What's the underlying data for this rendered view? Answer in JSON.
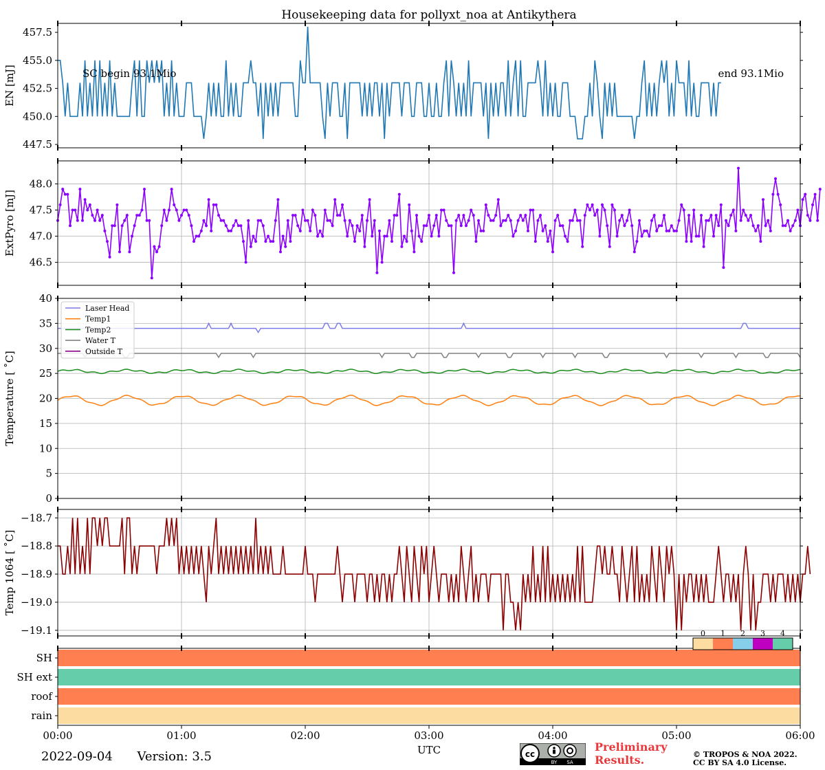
{
  "figure": {
    "date": "2022-09-04",
    "version": "Version: 3.5",
    "preliminary_line1": "Preliminary",
    "preliminary_line2": "Results.",
    "copyright_line1": "© TROPOS & NOA 2022.",
    "copyright_line2": "CC BY SA 4.0 License.",
    "cc_badge": [
      "BY",
      "SA"
    ]
  },
  "chart_data": [
    {
      "id": "en",
      "type": "line",
      "title": "Housekeeping data for pollyxt_noa at Antikythera",
      "ylabel": "EN [mJ]",
      "ylim": [
        447.2,
        458.3
      ],
      "yticks": [
        447.5,
        450.0,
        452.5,
        455.0,
        457.5
      ],
      "ytick_labels": [
        "447.5",
        "450.0",
        "452.5",
        "455.0",
        "457.5"
      ],
      "grid": false,
      "color": "#1f77b4",
      "annotations": [
        "SC begin 93.1Mio",
        "end 93.1Mio"
      ],
      "x_start_h": 0.0,
      "x_step_h": 0.02,
      "values": [
        455,
        455,
        453,
        450,
        453,
        450,
        450,
        450,
        450,
        453,
        450,
        455,
        450,
        453,
        450,
        455,
        450,
        455,
        450,
        453,
        450,
        455,
        450,
        453,
        450,
        450,
        450,
        450,
        450,
        450,
        453,
        455,
        450,
        455,
        450,
        450,
        455,
        453,
        455,
        453,
        455,
        453,
        455,
        450,
        453,
        450,
        455,
        450,
        453,
        450,
        450,
        450,
        453,
        453,
        453,
        450,
        450,
        450,
        450,
        448,
        450,
        453,
        450,
        453,
        450,
        453,
        450,
        450,
        455,
        450,
        453,
        450,
        453,
        450,
        450,
        453,
        453,
        453,
        455,
        453,
        453,
        450,
        453,
        448,
        453,
        450,
        453,
        450,
        453,
        450,
        453,
        453,
        453,
        453,
        453,
        453,
        450,
        450,
        455,
        453,
        453,
        458,
        453,
        453,
        453,
        453,
        453,
        450,
        448,
        453,
        450,
        453,
        453,
        453,
        450,
        450,
        453,
        448,
        453,
        453,
        453,
        453,
        453,
        450,
        453,
        450,
        453,
        450,
        453,
        453,
        450,
        453,
        448,
        453,
        450,
        453,
        453,
        453,
        453,
        450,
        453,
        453,
        453,
        450,
        450,
        453,
        453,
        453,
        450,
        450,
        453,
        450,
        450,
        453,
        450,
        450,
        453,
        455,
        450,
        455,
        453,
        450,
        453,
        450,
        453,
        450,
        455,
        450,
        453,
        453,
        453,
        453,
        450,
        453,
        448,
        453,
        450,
        453,
        450,
        453,
        453,
        450,
        455,
        450,
        453,
        455,
        450,
        455,
        450,
        450,
        453,
        453,
        453,
        453,
        455,
        453,
        450,
        455,
        450,
        453,
        450,
        453,
        450,
        450,
        453,
        453,
        453,
        450,
        450,
        450,
        448,
        448,
        448,
        450,
        450,
        453,
        450,
        455,
        453,
        450,
        448,
        453,
        450,
        453,
        450,
        453,
        450,
        450,
        450,
        450,
        450,
        450,
        450,
        448,
        450,
        450,
        453,
        455,
        450,
        453,
        450,
        453,
        450,
        453,
        455,
        453,
        455,
        450,
        453,
        450,
        455,
        453,
        453,
        453,
        450,
        455,
        450,
        453,
        450,
        450,
        453,
        453,
        453,
        453,
        450,
        453,
        450,
        453,
        453
      ]
    },
    {
      "id": "extpyro",
      "type": "line",
      "ylabel": "ExtPyro [mJ]",
      "ylim": [
        46.06,
        48.44
      ],
      "yticks": [
        46.5,
        47.0,
        47.5,
        48.0
      ],
      "ytick_labels": [
        "46.5",
        "47.0",
        "47.5",
        "48.0"
      ],
      "grid": true,
      "color": "#8b00ff",
      "markers": true,
      "x_start_h": 0.0,
      "x_step_h": 0.02,
      "values": [
        47.3,
        47.6,
        47.9,
        47.8,
        47.8,
        47.2,
        47.5,
        47.5,
        47.3,
        47.9,
        47.3,
        47.7,
        47.5,
        47.6,
        47.4,
        47.3,
        47.5,
        47.3,
        47.4,
        47.1,
        46.9,
        46.6,
        47.2,
        47.2,
        47.6,
        46.7,
        47.2,
        47.3,
        47.4,
        46.7,
        47.0,
        47.2,
        47.4,
        47.4,
        47.5,
        47.9,
        47.3,
        47.3,
        46.2,
        46.8,
        46.7,
        46.8,
        47.2,
        47.5,
        47.3,
        47.5,
        47.9,
        47.6,
        47.5,
        47.3,
        47.4,
        47.5,
        47.5,
        47.4,
        47.2,
        46.9,
        47.0,
        47.0,
        47.1,
        47.3,
        47.2,
        47.7,
        47.1,
        47.6,
        47.6,
        47.4,
        47.3,
        47.3,
        47.2,
        47.1,
        47.1,
        47.2,
        47.3,
        47.2,
        47.2,
        46.9,
        46.5,
        47.3,
        46.8,
        47.0,
        46.9,
        47.3,
        47.3,
        47.2,
        46.9,
        47.0,
        46.9,
        46.9,
        47.3,
        47.7,
        46.7,
        47.0,
        46.8,
        47.3,
        46.9,
        47.4,
        47.4,
        47.2,
        47.1,
        47.5,
        47.3,
        47.3,
        47.1,
        47.5,
        47.4,
        47.0,
        47.1,
        47.0,
        47.5,
        47.3,
        47.3,
        47.2,
        47.7,
        47.4,
        47.4,
        47.6,
        47.3,
        47.0,
        47.3,
        47.2,
        46.9,
        47.2,
        47.1,
        47.4,
        46.8,
        47.3,
        47.7,
        47.0,
        47.3,
        46.3,
        47.1,
        46.5,
        47.0,
        47.0,
        47.3,
        46.9,
        47.4,
        47.4,
        47.8,
        46.8,
        47.0,
        46.9,
        47.6,
        47.1,
        46.7,
        47.4,
        47.0,
        46.9,
        47.2,
        47.2,
        47.4,
        47.0,
        47.2,
        47.4,
        47.0,
        47.5,
        47.5,
        47.3,
        47.2,
        47.2,
        46.3,
        47.3,
        47.4,
        47.2,
        47.4,
        47.2,
        47.3,
        47.5,
        47.4,
        46.9,
        47.3,
        47.1,
        47.1,
        47.6,
        47.4,
        47.3,
        47.3,
        47.4,
        47.7,
        47.2,
        47.3,
        47.3,
        47.4,
        47.3,
        47.0,
        47.1,
        47.3,
        47.4,
        47.3,
        47.4,
        47.1,
        47.5,
        47.5,
        46.9,
        47.3,
        47.4,
        47.1,
        47.2,
        46.9,
        47.1,
        46.7,
        47.3,
        47.4,
        47.2,
        47.2,
        47.0,
        46.9,
        47.3,
        47.3,
        47.5,
        47.3,
        47.3,
        46.8,
        47.4,
        47.6,
        47.5,
        47.6,
        47.4,
        47.5,
        47.0,
        47.6,
        47.5,
        47.2,
        46.8,
        47.6,
        47.5,
        47.0,
        47.3,
        47.4,
        47.2,
        47.3,
        47.5,
        47.2,
        46.7,
        46.9,
        47.3,
        47.0,
        47.1,
        47.1,
        47.0,
        47.3,
        47.4,
        47.1,
        47.2,
        47.2,
        47.4,
        47.1,
        47.1,
        47.2,
        47.1,
        47.1,
        47.3,
        47.6,
        47.5,
        46.9,
        47.4,
        46.9,
        47.5,
        47.0,
        47.0,
        47.4,
        46.8,
        47.3,
        47.3,
        47.4,
        47.0,
        47.4,
        47.2,
        47.6,
        46.4,
        47.3,
        47.2,
        47.4,
        47.5,
        47.1,
        48.3,
        47.3,
        47.5,
        47.4,
        47.3,
        47.4,
        47.2,
        47.1,
        47.2,
        46.9,
        47.7,
        47.2,
        47.3,
        47.1,
        47.8,
        48.1,
        47.8,
        47.6,
        47.2,
        47.2,
        47.3,
        47.1,
        47.2,
        47.3,
        47.5,
        47.2,
        47.7,
        47.8,
        47.4,
        47.3,
        47.6,
        47.8,
        47.3,
        47.9
      ]
    },
    {
      "id": "temperature",
      "type": "line",
      "ylabel": "Temperature [$^\\circ C$]",
      "ylim": [
        0,
        40
      ],
      "yticks": [
        0,
        5,
        10,
        15,
        20,
        25,
        30,
        35,
        40
      ],
      "ytick_labels": [
        "0",
        "5",
        "10",
        "15",
        "20",
        "25",
        "30",
        "35",
        "40"
      ],
      "grid": true,
      "legend_position": "upper left",
      "series": [
        {
          "name": "Laser Head",
          "color": "#7b7bea",
          "base": 34.0,
          "spikes": [
            [
              1.22,
              35.0
            ],
            [
              1.4,
              35.0
            ],
            [
              1.62,
              33.2
            ],
            [
              2.17,
              35.0
            ],
            [
              2.27,
              35.0
            ],
            [
              3.28,
              35.0
            ],
            [
              5.55,
              35.0
            ]
          ]
        },
        {
          "name": "Temp1",
          "color": "#ff7f0e",
          "base": 19.6,
          "amplitude": 0.9,
          "period_h": 0.45
        },
        {
          "name": "Temp2",
          "color": "#1a8c1a",
          "base": 25.4,
          "amplitude": 0.3,
          "period_h": 0.45
        },
        {
          "name": "Water T",
          "color": "#808080",
          "base": 29.0,
          "dips": [
            0.22,
            0.55,
            1.3,
            1.58,
            2.62,
            2.87,
            3.13,
            3.4,
            3.65,
            3.92,
            4.18,
            4.43,
            4.92,
            5.2,
            5.48,
            5.73,
            6.0
          ],
          "dip_value": 28.2
        },
        {
          "name": "Outside T",
          "color": "#8b008b",
          "values": []
        }
      ]
    },
    {
      "id": "temp1064",
      "type": "line",
      "ylabel": "Temp 1064 [$^\\circ C$]",
      "ylim": [
        -19.12,
        -18.67
      ],
      "yticks": [
        -19.1,
        -19.0,
        -18.9,
        -18.8,
        -18.7
      ],
      "ytick_labels": [
        "−19.1",
        "−19.0",
        "−18.9",
        "−18.8",
        "−18.7"
      ],
      "grid": true,
      "color": "#8b0000",
      "x_start_h": 0.0,
      "x_step_h": 0.02,
      "values": [
        -18.8,
        -18.8,
        -18.9,
        -18.9,
        -18.8,
        -18.9,
        -18.7,
        -18.9,
        -18.7,
        -18.9,
        -18.8,
        -18.9,
        -18.7,
        -18.9,
        -18.7,
        -18.7,
        -18.8,
        -18.7,
        -18.8,
        -18.7,
        -18.7,
        -18.8,
        -18.8,
        -18.8,
        -18.8,
        -18.8,
        -18.7,
        -18.9,
        -18.7,
        -18.7,
        -18.9,
        -18.8,
        -18.9,
        -18.8,
        -18.8,
        -18.8,
        -18.8,
        -18.8,
        -18.8,
        -18.8,
        -18.9,
        -18.8,
        -18.8,
        -18.8,
        -18.7,
        -18.8,
        -18.7,
        -18.8,
        -18.7,
        -18.9,
        -18.8,
        -18.9,
        -18.8,
        -18.9,
        -18.8,
        -18.9,
        -18.8,
        -18.9,
        -18.8,
        -18.9,
        -19.0,
        -18.8,
        -18.9,
        -18.8,
        -18.7,
        -18.9,
        -18.8,
        -18.9,
        -18.8,
        -18.9,
        -18.8,
        -18.9,
        -18.8,
        -18.9,
        -18.8,
        -18.9,
        -18.8,
        -18.9,
        -18.8,
        -18.9,
        -18.7,
        -18.9,
        -18.8,
        -18.9,
        -18.8,
        -18.9,
        -18.8,
        -18.9,
        -18.9,
        -18.9,
        -18.9,
        -18.8,
        -18.9,
        -18.9,
        -18.9,
        -18.9,
        -18.9,
        -18.9,
        -18.9,
        -18.9,
        -18.8,
        -18.9,
        -18.9,
        -18.9,
        -19.0,
        -18.9,
        -18.9,
        -18.9,
        -18.9,
        -18.9,
        -18.9,
        -18.9,
        -18.9,
        -18.8,
        -18.9,
        -19.0,
        -18.9,
        -18.9,
        -18.9,
        -18.9,
        -19.0,
        -18.9,
        -18.9,
        -18.9,
        -18.9,
        -19.0,
        -18.9,
        -18.9,
        -19.0,
        -18.9,
        -19.0,
        -18.9,
        -18.9,
        -19.0,
        -18.9,
        -19.0,
        -18.9,
        -18.9,
        -18.8,
        -18.9,
        -19.0,
        -18.8,
        -18.9,
        -19.0,
        -18.8,
        -18.9,
        -19.0,
        -18.8,
        -18.9,
        -18.8,
        -19.0,
        -18.9,
        -18.8,
        -18.9,
        -19.0,
        -18.9,
        -18.9,
        -18.9,
        -19.0,
        -18.9,
        -19.0,
        -18.9,
        -19.0,
        -18.8,
        -18.9,
        -19.0,
        -18.9,
        -18.8,
        -19.0,
        -18.9,
        -19.0,
        -18.9,
        -18.9,
        -18.9,
        -19.0,
        -18.9,
        -18.9,
        -18.9,
        -18.9,
        -18.9,
        -19.1,
        -18.9,
        -18.9,
        -19.0,
        -19.0,
        -19.1,
        -19.0,
        -19.1,
        -18.9,
        -19.0,
        -18.9,
        -19.0,
        -18.8,
        -19.0,
        -18.9,
        -19.0,
        -18.8,
        -19.0,
        -18.8,
        -19.0,
        -18.9,
        -19.0,
        -18.9,
        -19.0,
        -18.9,
        -19.0,
        -18.9,
        -19.0,
        -18.9,
        -19.0,
        -18.8,
        -19.0,
        -18.8,
        -19.0,
        -19.0,
        -19.0,
        -19.0,
        -18.9,
        -18.8,
        -18.8,
        -18.9,
        -18.8,
        -18.9,
        -18.9,
        -18.8,
        -18.9,
        -18.9,
        -19.0,
        -18.8,
        -18.9,
        -19.0,
        -18.9,
        -18.8,
        -19.0,
        -18.8,
        -19.0,
        -18.9,
        -19.0,
        -18.9,
        -19.0,
        -18.8,
        -18.9,
        -19.0,
        -18.8,
        -18.9,
        -19.0,
        -18.8,
        -18.9,
        -18.8,
        -18.9,
        -19.1,
        -18.9,
        -19.1,
        -18.9,
        -19.0,
        -18.9,
        -18.9,
        -19.0,
        -18.9,
        -19.0,
        -18.9,
        -19.0,
        -18.9,
        -19.0,
        -19.0,
        -19.0,
        -18.9,
        -18.8,
        -18.9,
        -19.0,
        -18.9,
        -18.9,
        -19.0,
        -18.9,
        -19.0,
        -18.9,
        -19.1,
        -18.9,
        -18.8,
        -18.9,
        -19.1,
        -18.9,
        -19.1,
        -19.0,
        -19.0,
        -18.9,
        -18.9,
        -18.9,
        -19.0,
        -18.9,
        -19.0,
        -18.9,
        -18.9,
        -18.9,
        -19.0,
        -18.9,
        -19.0,
        -18.9,
        -19.0,
        -18.9,
        -19.0,
        -18.9,
        -18.9,
        -18.8,
        -18.9
      ]
    },
    {
      "id": "flags",
      "type": "heatmap",
      "rows": [
        "SH",
        "SH ext",
        "roof",
        "rain"
      ],
      "row_states": [
        1,
        4,
        1,
        0
      ],
      "colorbar_ticks": [
        "0",
        "1",
        "2",
        "3",
        "4"
      ],
      "state_colors": [
        "#fcdca0",
        "#ff7f50",
        "#87ceeb",
        "#c000c0",
        "#66cdaa"
      ],
      "xlabel": "UTC",
      "xticks_h": [
        0,
        1,
        2,
        3,
        4,
        5,
        6
      ],
      "xtick_labels": [
        "00:00",
        "01:00",
        "02:00",
        "03:00",
        "04:00",
        "05:00",
        "06:00"
      ],
      "xlim_h": [
        0,
        6
      ]
    }
  ]
}
